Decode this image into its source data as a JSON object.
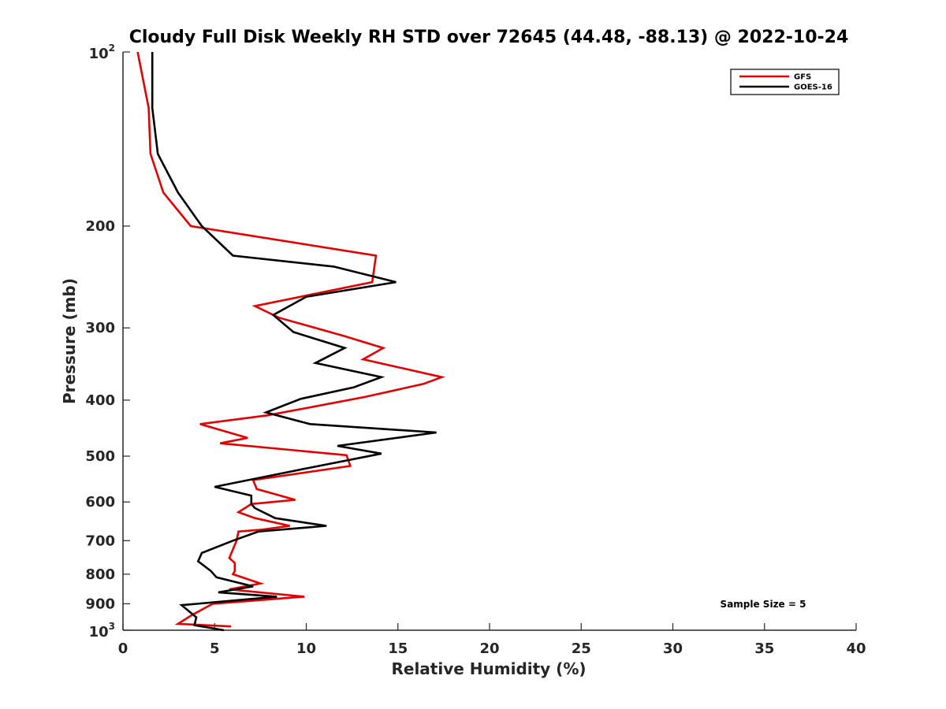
{
  "chart_data": {
    "type": "line",
    "title": "Cloudy Full Disk Weekly RH STD over 72645 (44.48, -88.13) @ 2022-10-24",
    "xlabel": "Relative Humidity (%)",
    "ylabel": "Pressure (mb)",
    "xlim": [
      0,
      40
    ],
    "ylim": [
      100,
      1000
    ],
    "y_scale": "log",
    "y_reversed": true,
    "x_ticks": [
      "0",
      "5",
      "10",
      "15",
      "20",
      "25",
      "30",
      "35",
      "40"
    ],
    "y_ticks": [
      {
        "value": 100,
        "base": "10",
        "exp": "2"
      },
      {
        "value": 200,
        "label": "200"
      },
      {
        "value": 300,
        "label": "300"
      },
      {
        "value": 400,
        "label": "400"
      },
      {
        "value": 500,
        "label": "500"
      },
      {
        "value": 600,
        "label": "600"
      },
      {
        "value": 700,
        "label": "700"
      },
      {
        "value": 800,
        "label": "800"
      },
      {
        "value": 900,
        "label": "900"
      },
      {
        "value": 1000,
        "base": "10",
        "exp": "3"
      }
    ],
    "grid": false,
    "legend_position": "top-right",
    "annotation": "Sample Size = 5",
    "series": [
      {
        "name": "GFS",
        "color": "#e00000",
        "points": [
          [
            0.8,
            100
          ],
          [
            1.4,
            125
          ],
          [
            1.5,
            150
          ],
          [
            2.2,
            175
          ],
          [
            3.7,
            200
          ],
          [
            13.8,
            225
          ],
          [
            13.6,
            250
          ],
          [
            7.2,
            275
          ],
          [
            8.5,
            288
          ],
          [
            12.1,
            310
          ],
          [
            14.2,
            325
          ],
          [
            13.1,
            340
          ],
          [
            17.4,
            365
          ],
          [
            16.4,
            375
          ],
          [
            13.2,
            395
          ],
          [
            7.9,
            425
          ],
          [
            4.2,
            440
          ],
          [
            6.8,
            465
          ],
          [
            5.3,
            475
          ],
          [
            12.2,
            498
          ],
          [
            12.4,
            520
          ],
          [
            7.1,
            550
          ],
          [
            7.3,
            570
          ],
          [
            9.4,
            595
          ],
          [
            7.0,
            605
          ],
          [
            6.3,
            625
          ],
          [
            7.2,
            640
          ],
          [
            9.1,
            660
          ],
          [
            7.6,
            670
          ],
          [
            6.3,
            675
          ],
          [
            6.2,
            700
          ],
          [
            5.8,
            750
          ],
          [
            6.1,
            765
          ],
          [
            6.1,
            790
          ],
          [
            6.0,
            800
          ],
          [
            7.5,
            830
          ],
          [
            5.8,
            850
          ],
          [
            9.9,
            875
          ],
          [
            4.9,
            900
          ],
          [
            3.8,
            940
          ],
          [
            3.0,
            975
          ],
          [
            5.9,
            985
          ]
        ]
      },
      {
        "name": "GOES-16",
        "color": "#000000",
        "points": [
          [
            1.6,
            100
          ],
          [
            1.6,
            125
          ],
          [
            1.9,
            150
          ],
          [
            3.0,
            175
          ],
          [
            4.3,
            200
          ],
          [
            6.0,
            225
          ],
          [
            11.5,
            235
          ],
          [
            14.9,
            250
          ],
          [
            10.0,
            265
          ],
          [
            8.2,
            285
          ],
          [
            9.3,
            305
          ],
          [
            12.1,
            325
          ],
          [
            10.5,
            345
          ],
          [
            14.1,
            365
          ],
          [
            12.6,
            380
          ],
          [
            9.7,
            398
          ],
          [
            7.8,
            420
          ],
          [
            10.2,
            440
          ],
          [
            17.1,
            455
          ],
          [
            11.7,
            480
          ],
          [
            14.1,
            495
          ],
          [
            10.0,
            525
          ],
          [
            5.0,
            565
          ],
          [
            7.0,
            585
          ],
          [
            7.0,
            605
          ],
          [
            7.2,
            615
          ],
          [
            8.3,
            640
          ],
          [
            11.1,
            660
          ],
          [
            7.4,
            675
          ],
          [
            6.0,
            700
          ],
          [
            4.3,
            735
          ],
          [
            4.1,
            760
          ],
          [
            4.8,
            790
          ],
          [
            5.1,
            810
          ],
          [
            7.1,
            840
          ],
          [
            5.2,
            860
          ],
          [
            8.4,
            875
          ],
          [
            3.2,
            905
          ],
          [
            4.0,
            950
          ],
          [
            3.9,
            980
          ],
          [
            5.5,
            1000
          ]
        ]
      }
    ]
  }
}
